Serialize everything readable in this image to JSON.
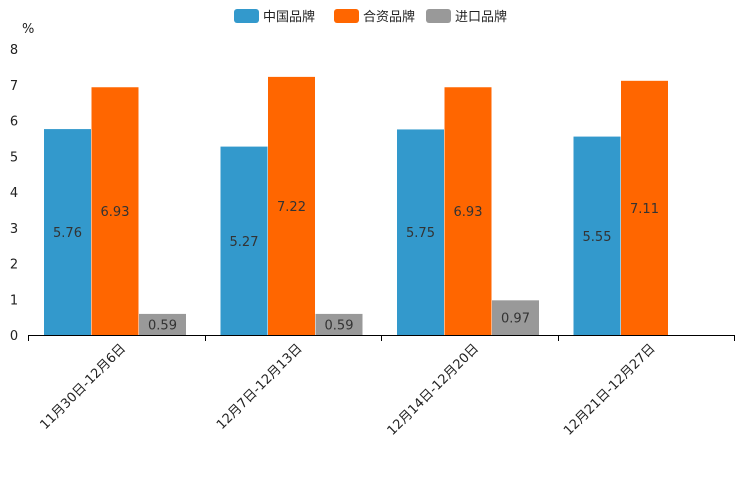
{
  "chart_data": {
    "type": "bar",
    "unit": "%",
    "categories": [
      "11月30日-12月6日",
      "12月7日-12月13日",
      "12月14日-12月20日",
      "12月21日-12月27日"
    ],
    "series": [
      {
        "name": "中国品牌",
        "color": "#3399cc",
        "values": [
          5.76,
          5.27,
          5.75,
          5.55
        ]
      },
      {
        "name": "合资品牌",
        "color": "#ff6600",
        "values": [
          6.93,
          7.22,
          6.93,
          7.11
        ]
      },
      {
        "name": "进口品牌",
        "color": "#999999",
        "values": [
          0.59,
          0.59,
          0.97,
          null
        ]
      }
    ],
    "data_labels": [
      [
        "5.76",
        "5.27",
        "5.75",
        "5.55"
      ],
      [
        "6.93",
        "7.22",
        "6.93",
        "7.11"
      ],
      [
        "0.59",
        "0.59",
        "0.97",
        null
      ]
    ],
    "ylim": [
      0,
      8
    ],
    "yticks": [
      "0",
      "1",
      "2",
      "3",
      "4",
      "5",
      "6",
      "7",
      "8"
    ],
    "legend_position": "top-center",
    "grid": false
  }
}
